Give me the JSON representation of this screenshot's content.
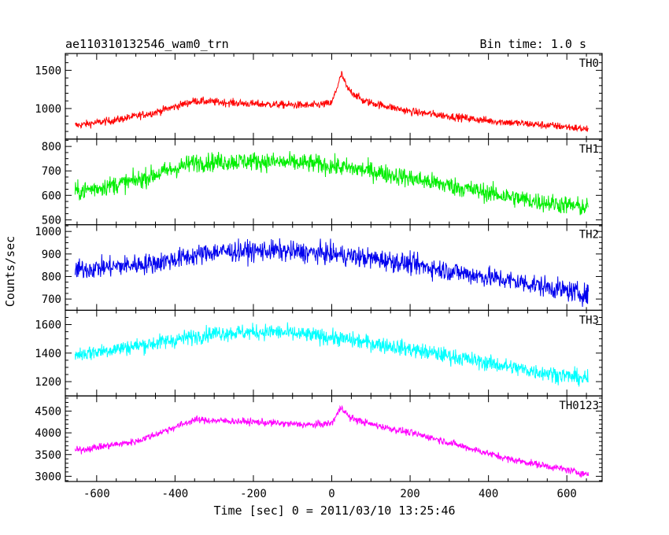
{
  "header": {
    "title": "ae110310132546_wam0_trn",
    "bin_time": "Bin time: 1.0 s"
  },
  "chart_data": {
    "type": "line",
    "xlabel": "Time [sec] 0 = 2011/03/10 13:25:46",
    "ylabel": "Counts/sec",
    "xlim": [
      -680,
      690
    ],
    "xticks": [
      -600,
      -400,
      -200,
      0,
      200,
      400,
      600
    ],
    "grid": false,
    "panels": [
      {
        "name": "TH0",
        "color": "#ff0000",
        "ylim": [
          600,
          1720
        ],
        "yticks": [
          1000,
          1500
        ],
        "profile": [
          [
            -650,
            780
          ],
          [
            -550,
            850
          ],
          [
            -450,
            950
          ],
          [
            -350,
            1100
          ],
          [
            -200,
            1060
          ],
          [
            -50,
            1040
          ],
          [
            0,
            1070
          ],
          [
            15,
            1300
          ],
          [
            25,
            1450
          ],
          [
            40,
            1260
          ],
          [
            80,
            1100
          ],
          [
            200,
            960
          ],
          [
            400,
            840
          ],
          [
            600,
            760
          ],
          [
            650,
            730
          ]
        ],
        "noise": 50
      },
      {
        "name": "TH1",
        "color": "#00ee00",
        "ylim": [
          480,
          830
        ],
        "yticks": [
          500,
          600,
          700,
          800
        ],
        "profile": [
          [
            -650,
            615
          ],
          [
            -500,
            660
          ],
          [
            -350,
            735
          ],
          [
            -200,
            740
          ],
          [
            -50,
            730
          ],
          [
            100,
            700
          ],
          [
            300,
            640
          ],
          [
            500,
            580
          ],
          [
            650,
            550
          ]
        ],
        "noise": 38
      },
      {
        "name": "TH2",
        "color": "#0000ee",
        "ylim": [
          650,
          1030
        ],
        "yticks": [
          700,
          800,
          900,
          1000
        ],
        "profile": [
          [
            -650,
            830
          ],
          [
            -450,
            860
          ],
          [
            -300,
            910
          ],
          [
            -150,
            915
          ],
          [
            0,
            900
          ],
          [
            150,
            870
          ],
          [
            350,
            810
          ],
          [
            500,
            770
          ],
          [
            650,
            720
          ]
        ],
        "noise": 45
      },
      {
        "name": "TH3",
        "color": "#00ffff",
        "ylim": [
          1100,
          1700
        ],
        "yticks": [
          1200,
          1400,
          1600
        ],
        "profile": [
          [
            -650,
            1390
          ],
          [
            -450,
            1470
          ],
          [
            -300,
            1540
          ],
          [
            -150,
            1550
          ],
          [
            0,
            1510
          ],
          [
            150,
            1450
          ],
          [
            300,
            1380
          ],
          [
            500,
            1280
          ],
          [
            650,
            1220
          ]
        ],
        "noise": 55
      },
      {
        "name": "TH0123",
        "color": "#ff00ff",
        "ylim": [
          2880,
          4850
        ],
        "yticks": [
          3000,
          3500,
          4000,
          4500
        ],
        "profile": [
          [
            -650,
            3600
          ],
          [
            -500,
            3800
          ],
          [
            -350,
            4300
          ],
          [
            -200,
            4250
          ],
          [
            -50,
            4180
          ],
          [
            0,
            4220
          ],
          [
            15,
            4450
          ],
          [
            25,
            4600
          ],
          [
            45,
            4350
          ],
          [
            100,
            4200
          ],
          [
            250,
            3900
          ],
          [
            450,
            3400
          ],
          [
            600,
            3150
          ],
          [
            650,
            3050
          ]
        ],
        "noise": 80
      }
    ]
  }
}
